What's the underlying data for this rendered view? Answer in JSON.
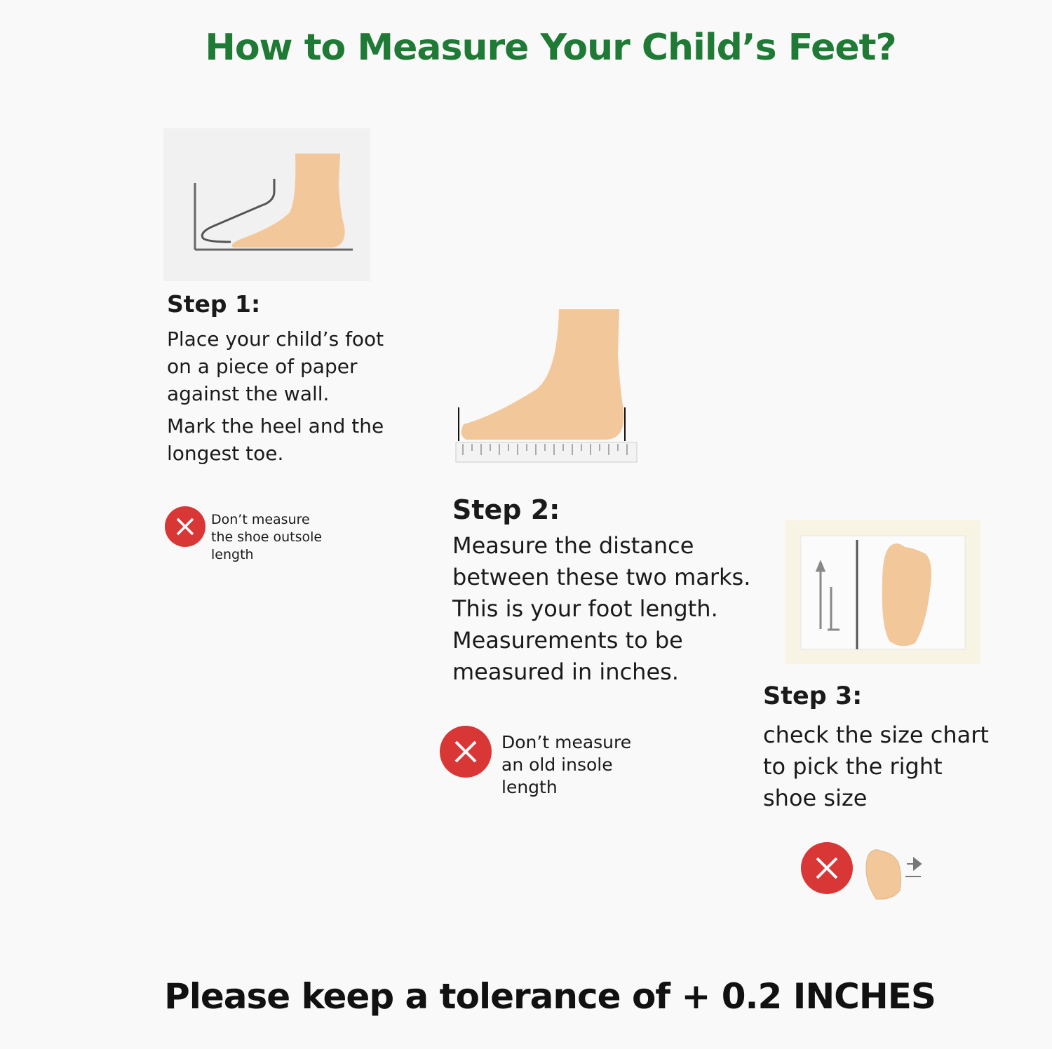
{
  "title": "How to Measure Your Child’s Feet?",
  "steps": [
    {
      "heading": "Step 1:",
      "text": "Place your child’s foot on a piece of paper against the wall.",
      "text2": "Mark the heel and the longest toe.",
      "warning": "Don’t measure the shoe outsole length"
    },
    {
      "heading": "Step 2:",
      "text": "Measure the distance between these two marks. This is your foot length. Measurements to be measured in inches.",
      "warning": "Don’t measure an old insole length"
    },
    {
      "heading": "Step 3:",
      "text": "check the size chart to pick the right shoe size"
    }
  ],
  "footer": "Please keep a tolerance of + 0.2 INCHES",
  "colors": {
    "title": "#1f7a35",
    "warning": "#d93636",
    "skin": "#f2c89a"
  },
  "icons": [
    "x-circle-icon",
    "foot-icon",
    "ruler-icon",
    "shoe-outline-icon",
    "arrows-icon"
  ]
}
